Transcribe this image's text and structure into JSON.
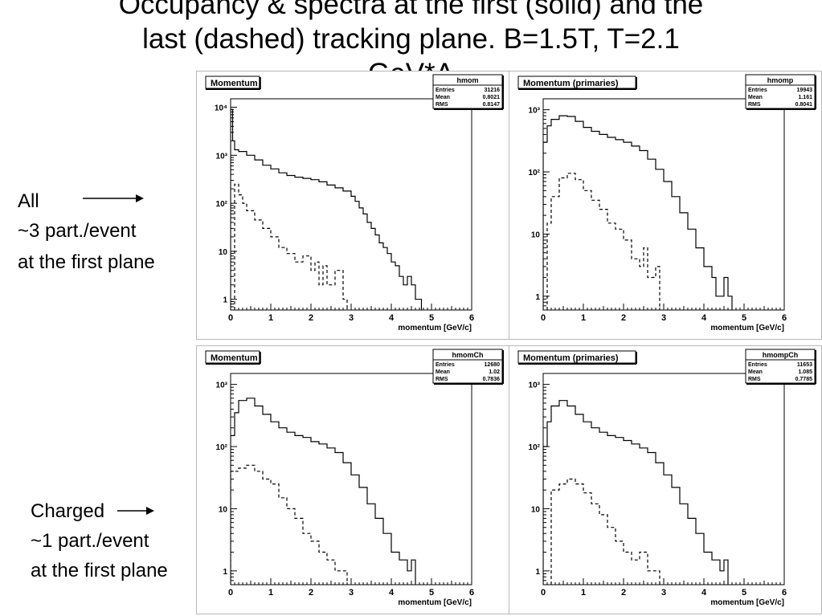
{
  "title": {
    "line1": "Occupancy & spectra at the first (solid) and the",
    "line2": "last (dashed) tracking plane. B=1.5T, T=2.1",
    "line3": "GeV*A"
  },
  "annotations": {
    "all": {
      "label": "All",
      "line2": "~3 part./event",
      "line3": "at the first plane"
    },
    "charged": {
      "label": "Charged",
      "line2": "~1 part./event",
      "line3": "at the first plane"
    }
  },
  "colors": {
    "frame": "#b8b8b8",
    "line": "#000000",
    "background": "#ffffff"
  },
  "chart_data": [
    {
      "type": "line",
      "title": "Momentum",
      "hist_name": "hmom",
      "stats": [
        [
          "Entries",
          "31216"
        ],
        [
          "Mean",
          "0.8021"
        ],
        [
          "RMS",
          "0.8147"
        ]
      ],
      "xlabel": "momentum [GeV/c]",
      "ylabel": "",
      "xlim": [
        0,
        6
      ],
      "ylim": [
        0.6,
        15000
      ],
      "y_scale": "log",
      "x_ticks": [
        "0",
        "1",
        "2",
        "3",
        "4",
        "5",
        "6"
      ],
      "y_ticks": [
        {
          "value": 1,
          "label": "1"
        },
        {
          "value": 10,
          "label": "10"
        },
        {
          "value": 100,
          "label": "10²"
        },
        {
          "value": 1000,
          "label": "10³"
        },
        {
          "value": 10000,
          "label": "10⁴"
        }
      ],
      "series": [
        {
          "style": "solid",
          "points": [
            [
              0,
              9000
            ],
            [
              0.05,
              2000
            ],
            [
              0.1,
              1300
            ],
            [
              0.2,
              1200
            ],
            [
              0.4,
              1000
            ],
            [
              0.6,
              800
            ],
            [
              0.8,
              620
            ],
            [
              1.0,
              520
            ],
            [
              1.2,
              430
            ],
            [
              1.4,
              380
            ],
            [
              1.6,
              350
            ],
            [
              1.8,
              330
            ],
            [
              2.0,
              310
            ],
            [
              2.2,
              280
            ],
            [
              2.4,
              240
            ],
            [
              2.6,
              210
            ],
            [
              2.8,
              180
            ],
            [
              3.0,
              140
            ],
            [
              3.1,
              110
            ],
            [
              3.2,
              80
            ],
            [
              3.3,
              60
            ],
            [
              3.4,
              40
            ],
            [
              3.5,
              30
            ],
            [
              3.6,
              22
            ],
            [
              3.7,
              15
            ],
            [
              3.8,
              12
            ],
            [
              3.9,
              9
            ],
            [
              4.0,
              6
            ],
            [
              4.1,
              5
            ],
            [
              4.2,
              3
            ],
            [
              4.3,
              2
            ],
            [
              4.4,
              3
            ],
            [
              4.5,
              2
            ],
            [
              4.6,
              1
            ]
          ],
          "x_end": 4.75
        },
        {
          "style": "dashed",
          "points": [
            [
              0.1,
              250
            ],
            [
              0.2,
              150
            ],
            [
              0.3,
              100
            ],
            [
              0.4,
              70
            ],
            [
              0.6,
              45
            ],
            [
              0.8,
              30
            ],
            [
              1.0,
              20
            ],
            [
              1.2,
              12
            ],
            [
              1.4,
              9
            ],
            [
              1.6,
              6
            ],
            [
              1.8,
              8
            ],
            [
              2.0,
              4
            ],
            [
              2.1,
              6
            ],
            [
              2.2,
              2
            ],
            [
              2.3,
              5
            ],
            [
              2.4,
              2
            ],
            [
              2.6,
              4
            ],
            [
              2.8,
              1
            ]
          ],
          "x_end": 2.9
        }
      ]
    },
    {
      "type": "line",
      "title": "Momentum (primaries)",
      "hist_name": "hmomp",
      "stats": [
        [
          "Entries",
          "19943"
        ],
        [
          "Mean",
          "1.161"
        ],
        [
          "RMS",
          "0.8041"
        ]
      ],
      "xlabel": "momentum [GeV/c]",
      "ylabel": "",
      "xlim": [
        0,
        6
      ],
      "ylim": [
        0.6,
        1500
      ],
      "y_scale": "log",
      "x_ticks": [
        "0",
        "1",
        "2",
        "3",
        "4",
        "5",
        "6"
      ],
      "y_ticks": [
        {
          "value": 1,
          "label": "1"
        },
        {
          "value": 10,
          "label": "10"
        },
        {
          "value": 100,
          "label": "10²"
        },
        {
          "value": 1000,
          "label": "10³"
        }
      ],
      "series": [
        {
          "style": "solid",
          "points": [
            [
              0,
              300
            ],
            [
              0.1,
              550
            ],
            [
              0.2,
              700
            ],
            [
              0.4,
              800
            ],
            [
              0.6,
              780
            ],
            [
              0.8,
              650
            ],
            [
              1.0,
              520
            ],
            [
              1.2,
              450
            ],
            [
              1.4,
              400
            ],
            [
              1.6,
              360
            ],
            [
              1.8,
              330
            ],
            [
              2.0,
              300
            ],
            [
              2.2,
              260
            ],
            [
              2.4,
              220
            ],
            [
              2.6,
              160
            ],
            [
              2.8,
              110
            ],
            [
              3.0,
              70
            ],
            [
              3.2,
              40
            ],
            [
              3.4,
              22
            ],
            [
              3.6,
              12
            ],
            [
              3.8,
              6
            ],
            [
              4.0,
              3
            ],
            [
              4.2,
              2
            ],
            [
              4.3,
              1
            ],
            [
              4.5,
              2
            ],
            [
              4.6,
              1
            ]
          ],
          "x_end": 4.7
        },
        {
          "style": "dashed",
          "points": [
            [
              0.1,
              15
            ],
            [
              0.2,
              40
            ],
            [
              0.4,
              80
            ],
            [
              0.6,
              95
            ],
            [
              0.8,
              75
            ],
            [
              1.0,
              50
            ],
            [
              1.2,
              35
            ],
            [
              1.4,
              25
            ],
            [
              1.6,
              15
            ],
            [
              1.8,
              12
            ],
            [
              2.0,
              8
            ],
            [
              2.2,
              4
            ],
            [
              2.4,
              3
            ],
            [
              2.5,
              6
            ],
            [
              2.6,
              2
            ],
            [
              2.8,
              3
            ]
          ],
          "x_end": 2.9
        }
      ]
    },
    {
      "type": "line",
      "title": "Momentum",
      "hist_name": "hmomCh",
      "stats": [
        [
          "Entries",
          "12680"
        ],
        [
          "Mean",
          "1.02"
        ],
        [
          "RMS",
          "0.7836"
        ]
      ],
      "xlabel": "momentum [GeV/c]",
      "ylabel": "",
      "xlim": [
        0,
        6
      ],
      "ylim": [
        0.6,
        1500
      ],
      "y_scale": "log",
      "x_ticks": [
        "0",
        "1",
        "2",
        "3",
        "4",
        "5",
        "6"
      ],
      "y_ticks": [
        {
          "value": 1,
          "label": "1"
        },
        {
          "value": 10,
          "label": "10"
        },
        {
          "value": 100,
          "label": "10²"
        },
        {
          "value": 1000,
          "label": "10³"
        }
      ],
      "series": [
        {
          "style": "solid",
          "points": [
            [
              0,
              150
            ],
            [
              0.1,
              350
            ],
            [
              0.2,
              550
            ],
            [
              0.4,
              600
            ],
            [
              0.6,
              450
            ],
            [
              0.8,
              330
            ],
            [
              1.0,
              250
            ],
            [
              1.2,
              200
            ],
            [
              1.4,
              170
            ],
            [
              1.6,
              150
            ],
            [
              1.8,
              140
            ],
            [
              2.0,
              120
            ],
            [
              2.2,
              110
            ],
            [
              2.4,
              95
            ],
            [
              2.6,
              80
            ],
            [
              2.8,
              55
            ],
            [
              3.0,
              35
            ],
            [
              3.2,
              22
            ],
            [
              3.4,
              12
            ],
            [
              3.6,
              7
            ],
            [
              3.8,
              4
            ],
            [
              4.0,
              2
            ],
            [
              4.2,
              1.5
            ],
            [
              4.4,
              1
            ],
            [
              4.5,
              1.5
            ]
          ],
          "x_end": 4.6
        },
        {
          "style": "dashed",
          "points": [
            [
              0,
              40
            ],
            [
              0.2,
              45
            ],
            [
              0.4,
              50
            ],
            [
              0.6,
              40
            ],
            [
              0.8,
              30
            ],
            [
              1.0,
              25
            ],
            [
              1.2,
              15
            ],
            [
              1.4,
              10
            ],
            [
              1.6,
              7
            ],
            [
              1.8,
              4
            ],
            [
              2.0,
              3
            ],
            [
              2.2,
              2
            ],
            [
              2.4,
              1.5
            ],
            [
              2.6,
              1
            ],
            [
              2.8,
              1
            ]
          ],
          "x_end": 2.9
        }
      ]
    },
    {
      "type": "line",
      "title": "Momentum (primaries)",
      "hist_name": "hmompCh",
      "stats": [
        [
          "Entries",
          "11653"
        ],
        [
          "Mean",
          "1.085"
        ],
        [
          "RMS",
          "0.7785"
        ]
      ],
      "xlabel": "momentum [GeV/c]",
      "ylabel": "",
      "xlim": [
        0,
        6
      ],
      "ylim": [
        0.6,
        1500
      ],
      "y_scale": "log",
      "x_ticks": [
        "0",
        "1",
        "2",
        "3",
        "4",
        "5",
        "6"
      ],
      "y_ticks": [
        {
          "value": 1,
          "label": "1"
        },
        {
          "value": 10,
          "label": "10"
        },
        {
          "value": 100,
          "label": "10²"
        },
        {
          "value": 1000,
          "label": "10³"
        }
      ],
      "series": [
        {
          "style": "solid",
          "points": [
            [
              0,
              100
            ],
            [
              0.1,
              250
            ],
            [
              0.2,
              450
            ],
            [
              0.4,
              550
            ],
            [
              0.6,
              450
            ],
            [
              0.8,
              330
            ],
            [
              1.0,
              250
            ],
            [
              1.2,
              200
            ],
            [
              1.4,
              170
            ],
            [
              1.6,
              150
            ],
            [
              1.8,
              140
            ],
            [
              2.0,
              125
            ],
            [
              2.2,
              110
            ],
            [
              2.4,
              95
            ],
            [
              2.6,
              80
            ],
            [
              2.8,
              55
            ],
            [
              3.0,
              35
            ],
            [
              3.2,
              22
            ],
            [
              3.4,
              12
            ],
            [
              3.6,
              7
            ],
            [
              3.8,
              4
            ],
            [
              4.0,
              2
            ],
            [
              4.2,
              1.5
            ],
            [
              4.4,
              1
            ],
            [
              4.5,
              1.5
            ]
          ],
          "x_end": 4.6
        },
        {
          "style": "dashed",
          "points": [
            [
              0.2,
              20
            ],
            [
              0.4,
              25
            ],
            [
              0.6,
              30
            ],
            [
              0.8,
              25
            ],
            [
              1.0,
              18
            ],
            [
              1.2,
              12
            ],
            [
              1.4,
              8
            ],
            [
              1.6,
              5
            ],
            [
              1.8,
              3
            ],
            [
              2.0,
              2
            ],
            [
              2.2,
              1.5
            ],
            [
              2.4,
              2
            ],
            [
              2.6,
              1
            ],
            [
              2.8,
              1
            ]
          ],
          "x_end": 2.9
        }
      ]
    }
  ]
}
